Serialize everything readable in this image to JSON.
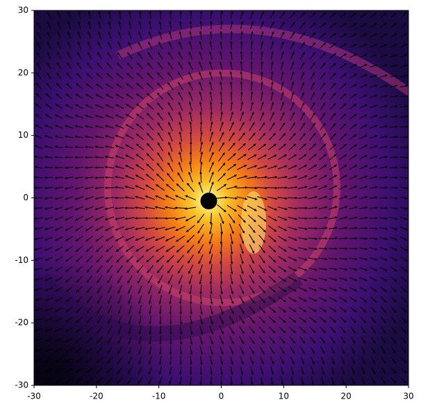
{
  "chart_data": {
    "type": "quiver",
    "xlim": [
      -30,
      30
    ],
    "ylim": [
      -30,
      30
    ],
    "xticks": [
      -30,
      -20,
      -10,
      0,
      10,
      20,
      30
    ],
    "yticks": [
      -30,
      -20,
      -10,
      0,
      10,
      20,
      30
    ],
    "point": {
      "x": -2,
      "y": -0.5,
      "color": "#000000"
    }
  }
}
